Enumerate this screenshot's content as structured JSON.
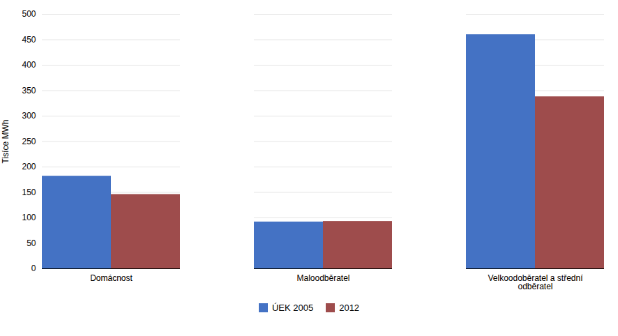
{
  "chart_data": {
    "type": "bar",
    "categories": [
      "Domácnost",
      "Maloodběratel",
      "Velkoodoběratel a střední\nodběratel"
    ],
    "series": [
      {
        "name": "ÚEK 2005",
        "color": "#4472C4",
        "values": [
          182,
          92,
          460
        ]
      },
      {
        "name": "2012",
        "color": "#9E4C4C",
        "values": [
          146,
          93,
          338
        ]
      }
    ],
    "ylabel": "Tisíce MWh",
    "ylim": [
      0,
      500
    ],
    "yticks": [
      0,
      50,
      100,
      150,
      200,
      250,
      300,
      350,
      400,
      450,
      500
    ],
    "grid": true,
    "legend": "bottom"
  }
}
